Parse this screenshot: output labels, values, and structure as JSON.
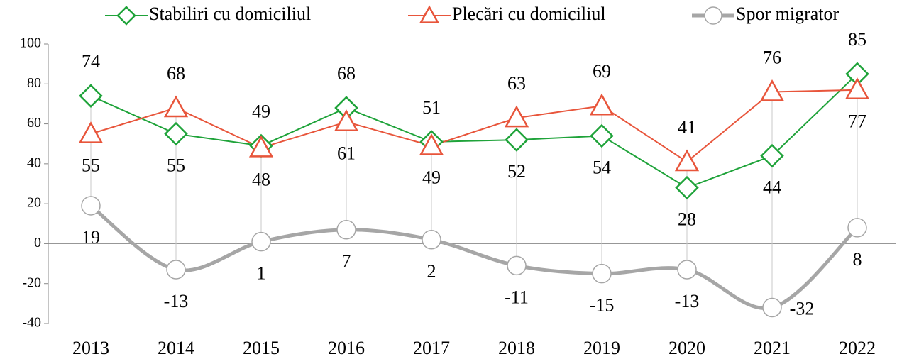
{
  "chart_data": {
    "type": "line",
    "categories": [
      "2013",
      "2014",
      "2015",
      "2016",
      "2017",
      "2018",
      "2019",
      "2020",
      "2021",
      "2022"
    ],
    "series": [
      {
        "name": "Stabiliri cu domiciliul",
        "color": "#1fa33a",
        "marker": "diamond",
        "values": [
          74,
          55,
          49,
          68,
          51,
          52,
          54,
          28,
          44,
          85
        ]
      },
      {
        "name": "Plecări cu domiciliul",
        "color": "#e8553b",
        "marker": "triangle",
        "values": [
          55,
          68,
          48,
          61,
          49,
          63,
          69,
          41,
          76,
          77
        ]
      },
      {
        "name": "Spor migrator",
        "color": "#a6a6a6",
        "marker": "circle",
        "smooth": true,
        "values": [
          19,
          -13,
          1,
          7,
          2,
          -11,
          -15,
          -13,
          -32,
          8
        ]
      }
    ],
    "ylim": [
      -40,
      100
    ],
    "yticks": [
      -40,
      -20,
      0,
      20,
      40,
      60,
      80,
      100
    ],
    "legend": "top",
    "grid": false
  }
}
